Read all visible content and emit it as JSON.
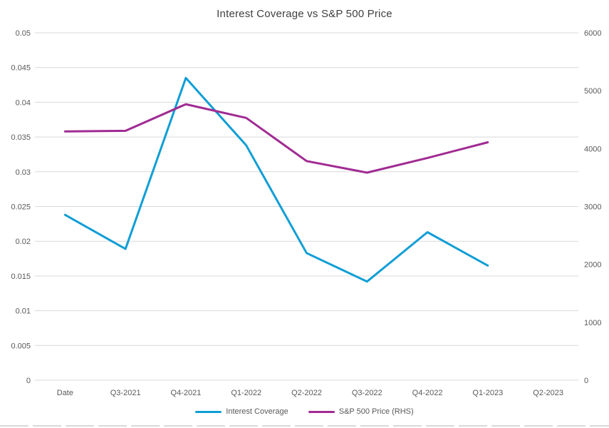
{
  "title": "Interest Coverage vs S&P 500 Price",
  "colors": {
    "background": "#FFFFFF",
    "gridline": "#D9D9D9",
    "axis_text": "#595959",
    "title_text": "#404040",
    "series_blue": "#0F9ED5",
    "series_purple": "#A02B93"
  },
  "chart_data": {
    "type": "line",
    "title": "Interest Coverage vs S&P 500 Price",
    "categories": [
      "Date",
      "Q3-2021",
      "Q4-2021",
      "Q1-2022",
      "Q2-2022",
      "Q3-2022",
      "Q4-2022",
      "Q1-2023",
      "Q2-2023"
    ],
    "series": [
      {
        "name": "Interest Coverage",
        "axis": "left",
        "color": "#0F9ED5",
        "values": [
          0.0238,
          0.0189,
          0.0435,
          0.0338,
          0.0183,
          0.0142,
          0.0213,
          0.0165,
          null
        ]
      },
      {
        "name": "S&P 500 Price (RHS)",
        "axis": "right",
        "color": "#A02B93",
        "values": [
          4297.5,
          4307.5,
          4766.2,
          4530.4,
          3785.4,
          3585.6,
          3839.5,
          4109.3,
          null
        ]
      }
    ],
    "left_axis": {
      "min": 0,
      "max": 0.05,
      "tick_values": [
        0,
        0.005,
        0.01,
        0.015,
        0.02,
        0.025,
        0.03,
        0.035,
        0.04,
        0.045,
        0.05
      ],
      "tick_labels": [
        "0",
        "0.005",
        "0.01",
        "0.015",
        "0.02",
        "0.025",
        "0.03",
        "0.035",
        "0.04",
        "0.045",
        "0.05"
      ]
    },
    "right_axis": {
      "min": 0,
      "max": 6000,
      "tick_values": [
        0,
        1000,
        2000,
        3000,
        4000,
        5000,
        6000
      ],
      "tick_labels": [
        "0",
        "1000",
        "2000",
        "3000",
        "4000",
        "5000",
        "6000"
      ]
    },
    "grid": true,
    "legend_position": "bottom",
    "legend": [
      "Interest Coverage",
      "S&P 500 Price (RHS)"
    ]
  }
}
